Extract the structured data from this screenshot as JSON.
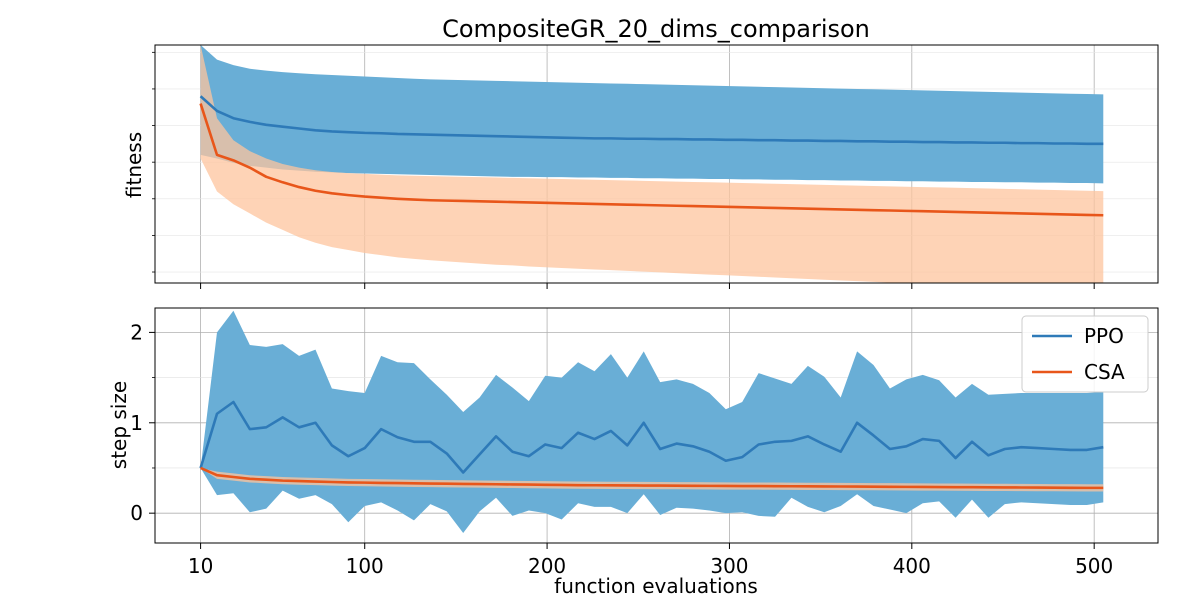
{
  "chart_data": {
    "type": "line",
    "title": "CompositeGR_20_dims_comparison",
    "xlabel": "function evaluations",
    "xticks": [
      10,
      100,
      200,
      300,
      400,
      500
    ],
    "xlim": [
      -15,
      535
    ],
    "x": [
      10,
      19,
      28,
      37,
      46,
      55,
      64,
      73,
      82,
      91,
      100,
      109,
      118,
      127,
      136,
      145,
      154,
      163,
      172,
      181,
      190,
      199,
      208,
      217,
      226,
      235,
      244,
      253,
      262,
      271,
      280,
      289,
      298,
      307,
      316,
      325,
      334,
      343,
      352,
      361,
      370,
      379,
      388,
      397,
      406,
      415,
      424,
      433,
      442,
      451,
      460,
      469,
      478,
      487,
      496,
      505
    ],
    "colors": {
      "PPO": "#2e7ab8",
      "CSA": "#e8561a",
      "PPO_band": "#69aed6",
      "CSA_band": "#fdc49d"
    },
    "legend": {
      "placement": "upper-right",
      "entries": [
        "PPO",
        "CSA"
      ]
    },
    "grid": true,
    "subplots": [
      {
        "ylabel": "fitness",
        "ylim": [
          -0.3,
          6.2
        ],
        "yticks": [],
        "series": [
          {
            "name": "PPO",
            "mean": [
              4.8,
              4.4,
              4.2,
              4.1,
              4.02,
              3.97,
              3.92,
              3.87,
              3.84,
              3.82,
              3.8,
              3.79,
              3.77,
              3.76,
              3.75,
              3.74,
              3.73,
              3.72,
              3.71,
              3.7,
              3.69,
              3.68,
              3.67,
              3.66,
              3.65,
              3.65,
              3.64,
              3.64,
              3.63,
              3.63,
              3.62,
              3.62,
              3.61,
              3.61,
              3.6,
              3.6,
              3.59,
              3.59,
              3.58,
              3.58,
              3.57,
              3.57,
              3.56,
              3.56,
              3.55,
              3.55,
              3.54,
              3.54,
              3.53,
              3.53,
              3.52,
              3.52,
              3.51,
              3.51,
              3.5,
              3.5
            ],
            "upper": [
              6.2,
              5.8,
              5.65,
              5.55,
              5.5,
              5.46,
              5.43,
              5.4,
              5.38,
              5.36,
              5.34,
              5.32,
              5.3,
              5.28,
              5.26,
              5.25,
              5.24,
              5.23,
              5.22,
              5.21,
              5.2,
              5.19,
              5.18,
              5.17,
              5.16,
              5.15,
              5.14,
              5.13,
              5.12,
              5.11,
              5.1,
              5.09,
              5.08,
              5.07,
              5.06,
              5.05,
              5.04,
              5.03,
              5.02,
              5.01,
              5.0,
              4.99,
              4.98,
              4.97,
              4.96,
              4.95,
              4.94,
              4.93,
              4.92,
              4.91,
              4.9,
              4.89,
              4.88,
              4.87,
              4.86,
              4.85
            ],
            "lower": [
              3.2,
              3.1,
              2.98,
              2.9,
              2.85,
              2.8,
              2.77,
              2.74,
              2.72,
              2.7,
              2.69,
              2.68,
              2.67,
              2.66,
              2.65,
              2.64,
              2.63,
              2.62,
              2.61,
              2.6,
              2.6,
              2.59,
              2.59,
              2.58,
              2.58,
              2.57,
              2.57,
              2.56,
              2.56,
              2.55,
              2.55,
              2.54,
              2.54,
              2.53,
              2.53,
              2.52,
              2.52,
              2.51,
              2.51,
              2.5,
              2.5,
              2.49,
              2.49,
              2.48,
              2.48,
              2.47,
              2.47,
              2.46,
              2.46,
              2.45,
              2.45,
              2.44,
              2.44,
              2.43,
              2.43,
              2.42
            ]
          },
          {
            "name": "CSA",
            "mean": [
              4.6,
              3.2,
              3.05,
              2.85,
              2.6,
              2.45,
              2.32,
              2.22,
              2.15,
              2.1,
              2.06,
              2.03,
              2.0,
              1.98,
              1.96,
              1.95,
              1.94,
              1.93,
              1.92,
              1.91,
              1.9,
              1.89,
              1.88,
              1.87,
              1.86,
              1.85,
              1.84,
              1.83,
              1.82,
              1.81,
              1.8,
              1.79,
              1.78,
              1.77,
              1.76,
              1.75,
              1.74,
              1.73,
              1.72,
              1.71,
              1.7,
              1.69,
              1.68,
              1.67,
              1.66,
              1.65,
              1.64,
              1.63,
              1.62,
              1.61,
              1.6,
              1.59,
              1.58,
              1.57,
              1.56,
              1.55
            ],
            "upper": [
              6.2,
              4.2,
              3.6,
              3.3,
              3.1,
              2.95,
              2.85,
              2.78,
              2.73,
              2.7,
              2.68,
              2.66,
              2.64,
              2.63,
              2.62,
              2.61,
              2.6,
              2.59,
              2.58,
              2.57,
              2.56,
              2.55,
              2.54,
              2.53,
              2.52,
              2.51,
              2.5,
              2.49,
              2.48,
              2.47,
              2.46,
              2.45,
              2.44,
              2.43,
              2.42,
              2.41,
              2.4,
              2.39,
              2.38,
              2.37,
              2.36,
              2.35,
              2.34,
              2.33,
              2.32,
              2.31,
              2.3,
              2.29,
              2.28,
              2.27,
              2.26,
              2.25,
              2.24,
              2.23,
              2.22,
              2.21
            ],
            "lower": [
              3.1,
              2.2,
              1.85,
              1.6,
              1.35,
              1.15,
              0.95,
              0.8,
              0.68,
              0.6,
              0.52,
              0.46,
              0.4,
              0.36,
              0.32,
              0.29,
              0.26,
              0.23,
              0.2,
              0.18,
              0.15,
              0.13,
              0.11,
              0.09,
              0.07,
              0.05,
              0.03,
              0.01,
              -0.01,
              -0.03,
              -0.05,
              -0.07,
              -0.09,
              -0.11,
              -0.13,
              -0.15,
              -0.17,
              -0.19,
              -0.21,
              -0.23,
              -0.25,
              -0.27,
              -0.29,
              -0.31,
              -0.33,
              -0.35,
              -0.37,
              -0.39,
              -0.41,
              -0.43,
              -0.45,
              -0.47,
              -0.49,
              -0.51,
              -0.53,
              -0.55
            ]
          }
        ]
      },
      {
        "ylabel": "step size",
        "ylim": [
          -0.33,
          2.27
        ],
        "yticks": [
          0,
          1,
          2
        ],
        "series": [
          {
            "name": "PPO",
            "mean": [
              0.5,
              1.1,
              1.23,
              0.93,
              0.95,
              1.06,
              0.95,
              1.0,
              0.75,
              0.63,
              0.72,
              0.93,
              0.84,
              0.79,
              0.79,
              0.66,
              0.45,
              0.65,
              0.85,
              0.68,
              0.63,
              0.76,
              0.72,
              0.89,
              0.82,
              0.91,
              0.75,
              1.0,
              0.71,
              0.77,
              0.74,
              0.68,
              0.58,
              0.62,
              0.76,
              0.79,
              0.8,
              0.85,
              0.76,
              0.68,
              1.0,
              0.86,
              0.71,
              0.74,
              0.82,
              0.8,
              0.61,
              0.79,
              0.64,
              0.71,
              0.73,
              0.72,
              0.71,
              0.7,
              0.7,
              0.73
            ],
            "upper": [
              0.5,
              2.0,
              2.24,
              1.86,
              1.84,
              1.87,
              1.74,
              1.81,
              1.38,
              1.35,
              1.33,
              1.74,
              1.67,
              1.66,
              1.48,
              1.31,
              1.12,
              1.28,
              1.53,
              1.39,
              1.24,
              1.52,
              1.5,
              1.67,
              1.57,
              1.76,
              1.5,
              1.79,
              1.45,
              1.48,
              1.43,
              1.33,
              1.15,
              1.23,
              1.55,
              1.49,
              1.43,
              1.63,
              1.51,
              1.28,
              1.79,
              1.64,
              1.38,
              1.48,
              1.53,
              1.47,
              1.28,
              1.43,
              1.31,
              1.32,
              1.33,
              1.33,
              1.33,
              1.33,
              1.33,
              1.34
            ],
            "lower": [
              0.5,
              0.2,
              0.22,
              0.01,
              0.05,
              0.25,
              0.16,
              0.2,
              0.1,
              -0.1,
              0.08,
              0.12,
              0.03,
              -0.08,
              0.1,
              0.02,
              -0.22,
              0.02,
              0.17,
              -0.03,
              0.03,
              0.0,
              -0.07,
              0.11,
              0.07,
              0.07,
              0.0,
              0.21,
              -0.02,
              0.06,
              0.05,
              0.03,
              0.0,
              0.01,
              -0.03,
              -0.04,
              0.17,
              0.07,
              0.01,
              0.08,
              0.21,
              0.08,
              0.04,
              0.0,
              0.11,
              0.13,
              -0.05,
              0.15,
              -0.05,
              0.1,
              0.12,
              0.11,
              0.1,
              0.09,
              0.09,
              0.12
            ],
            "x_override_count": 56
          },
          {
            "name": "CSA",
            "mean": [
              0.5,
              0.42,
              0.4,
              0.38,
              0.37,
              0.36,
              0.355,
              0.35,
              0.345,
              0.34,
              0.338,
              0.335,
              0.333,
              0.33,
              0.328,
              0.326,
              0.324,
              0.322,
              0.32,
              0.318,
              0.316,
              0.314,
              0.312,
              0.31,
              0.309,
              0.308,
              0.307,
              0.306,
              0.305,
              0.304,
              0.303,
              0.302,
              0.301,
              0.3,
              0.3,
              0.299,
              0.298,
              0.297,
              0.296,
              0.295,
              0.294,
              0.293,
              0.292,
              0.291,
              0.29,
              0.289,
              0.288,
              0.287,
              0.286,
              0.285,
              0.284,
              0.283,
              0.282,
              0.281,
              0.28,
              0.28
            ],
            "upper": [
              0.5,
              0.46,
              0.44,
              0.42,
              0.41,
              0.4,
              0.395,
              0.39,
              0.385,
              0.38,
              0.378,
              0.375,
              0.373,
              0.37,
              0.368,
              0.366,
              0.364,
              0.362,
              0.36,
              0.358,
              0.356,
              0.354,
              0.352,
              0.35,
              0.349,
              0.348,
              0.347,
              0.346,
              0.345,
              0.344,
              0.343,
              0.342,
              0.341,
              0.34,
              0.34,
              0.339,
              0.338,
              0.337,
              0.336,
              0.335,
              0.334,
              0.333,
              0.332,
              0.331,
              0.33,
              0.329,
              0.328,
              0.327,
              0.326,
              0.325,
              0.324,
              0.323,
              0.322,
              0.321,
              0.32,
              0.32
            ],
            "lower": [
              0.5,
              0.38,
              0.36,
              0.34,
              0.33,
              0.32,
              0.315,
              0.31,
              0.305,
              0.3,
              0.298,
              0.295,
              0.293,
              0.29,
              0.288,
              0.286,
              0.284,
              0.282,
              0.28,
              0.278,
              0.276,
              0.274,
              0.272,
              0.27,
              0.269,
              0.268,
              0.267,
              0.266,
              0.265,
              0.264,
              0.263,
              0.262,
              0.261,
              0.26,
              0.26,
              0.259,
              0.258,
              0.257,
              0.256,
              0.255,
              0.254,
              0.253,
              0.252,
              0.251,
              0.25,
              0.249,
              0.248,
              0.247,
              0.246,
              0.245,
              0.244,
              0.243,
              0.242,
              0.241,
              0.24,
              0.24
            ]
          }
        ]
      }
    ]
  }
}
